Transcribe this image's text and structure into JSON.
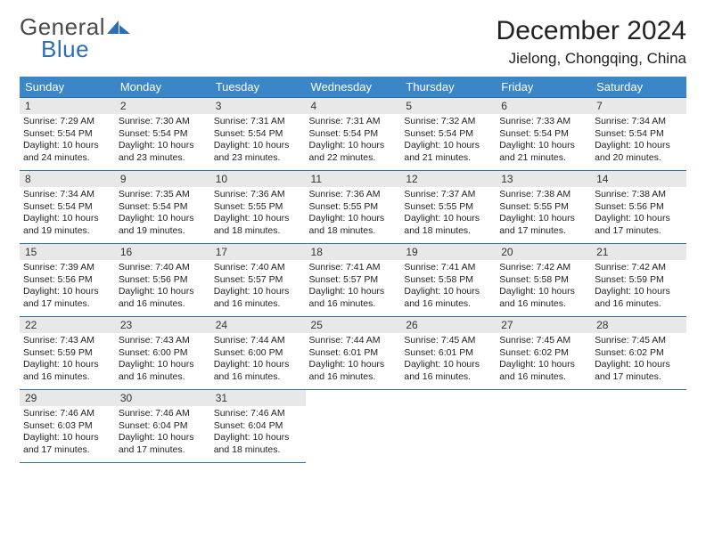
{
  "logo": {
    "word1": "General",
    "word2": "Blue"
  },
  "title": "December 2024",
  "location": "Jielong, Chongqing, China",
  "colors": {
    "header_bg": "#3b86c6",
    "header_text": "#ffffff",
    "border": "#2d6fb5",
    "daynum_bg": "#e8e8e8",
    "logo_blue": "#2d6fb5",
    "logo_gray": "#4a4a4a",
    "text": "#222222",
    "page_bg": "#ffffff"
  },
  "weekdays": [
    "Sunday",
    "Monday",
    "Tuesday",
    "Wednesday",
    "Thursday",
    "Friday",
    "Saturday"
  ],
  "weeks": [
    [
      {
        "n": "1",
        "sr": "7:29 AM",
        "ss": "5:54 PM",
        "dl": "10 hours and 24 minutes."
      },
      {
        "n": "2",
        "sr": "7:30 AM",
        "ss": "5:54 PM",
        "dl": "10 hours and 23 minutes."
      },
      {
        "n": "3",
        "sr": "7:31 AM",
        "ss": "5:54 PM",
        "dl": "10 hours and 23 minutes."
      },
      {
        "n": "4",
        "sr": "7:31 AM",
        "ss": "5:54 PM",
        "dl": "10 hours and 22 minutes."
      },
      {
        "n": "5",
        "sr": "7:32 AM",
        "ss": "5:54 PM",
        "dl": "10 hours and 21 minutes."
      },
      {
        "n": "6",
        "sr": "7:33 AM",
        "ss": "5:54 PM",
        "dl": "10 hours and 21 minutes."
      },
      {
        "n": "7",
        "sr": "7:34 AM",
        "ss": "5:54 PM",
        "dl": "10 hours and 20 minutes."
      }
    ],
    [
      {
        "n": "8",
        "sr": "7:34 AM",
        "ss": "5:54 PM",
        "dl": "10 hours and 19 minutes."
      },
      {
        "n": "9",
        "sr": "7:35 AM",
        "ss": "5:54 PM",
        "dl": "10 hours and 19 minutes."
      },
      {
        "n": "10",
        "sr": "7:36 AM",
        "ss": "5:55 PM",
        "dl": "10 hours and 18 minutes."
      },
      {
        "n": "11",
        "sr": "7:36 AM",
        "ss": "5:55 PM",
        "dl": "10 hours and 18 minutes."
      },
      {
        "n": "12",
        "sr": "7:37 AM",
        "ss": "5:55 PM",
        "dl": "10 hours and 18 minutes."
      },
      {
        "n": "13",
        "sr": "7:38 AM",
        "ss": "5:55 PM",
        "dl": "10 hours and 17 minutes."
      },
      {
        "n": "14",
        "sr": "7:38 AM",
        "ss": "5:56 PM",
        "dl": "10 hours and 17 minutes."
      }
    ],
    [
      {
        "n": "15",
        "sr": "7:39 AM",
        "ss": "5:56 PM",
        "dl": "10 hours and 17 minutes."
      },
      {
        "n": "16",
        "sr": "7:40 AM",
        "ss": "5:56 PM",
        "dl": "10 hours and 16 minutes."
      },
      {
        "n": "17",
        "sr": "7:40 AM",
        "ss": "5:57 PM",
        "dl": "10 hours and 16 minutes."
      },
      {
        "n": "18",
        "sr": "7:41 AM",
        "ss": "5:57 PM",
        "dl": "10 hours and 16 minutes."
      },
      {
        "n": "19",
        "sr": "7:41 AM",
        "ss": "5:58 PM",
        "dl": "10 hours and 16 minutes."
      },
      {
        "n": "20",
        "sr": "7:42 AM",
        "ss": "5:58 PM",
        "dl": "10 hours and 16 minutes."
      },
      {
        "n": "21",
        "sr": "7:42 AM",
        "ss": "5:59 PM",
        "dl": "10 hours and 16 minutes."
      }
    ],
    [
      {
        "n": "22",
        "sr": "7:43 AM",
        "ss": "5:59 PM",
        "dl": "10 hours and 16 minutes."
      },
      {
        "n": "23",
        "sr": "7:43 AM",
        "ss": "6:00 PM",
        "dl": "10 hours and 16 minutes."
      },
      {
        "n": "24",
        "sr": "7:44 AM",
        "ss": "6:00 PM",
        "dl": "10 hours and 16 minutes."
      },
      {
        "n": "25",
        "sr": "7:44 AM",
        "ss": "6:01 PM",
        "dl": "10 hours and 16 minutes."
      },
      {
        "n": "26",
        "sr": "7:45 AM",
        "ss": "6:01 PM",
        "dl": "10 hours and 16 minutes."
      },
      {
        "n": "27",
        "sr": "7:45 AM",
        "ss": "6:02 PM",
        "dl": "10 hours and 16 minutes."
      },
      {
        "n": "28",
        "sr": "7:45 AM",
        "ss": "6:02 PM",
        "dl": "10 hours and 17 minutes."
      }
    ],
    [
      {
        "n": "29",
        "sr": "7:46 AM",
        "ss": "6:03 PM",
        "dl": "10 hours and 17 minutes."
      },
      {
        "n": "30",
        "sr": "7:46 AM",
        "ss": "6:04 PM",
        "dl": "10 hours and 17 minutes."
      },
      {
        "n": "31",
        "sr": "7:46 AM",
        "ss": "6:04 PM",
        "dl": "10 hours and 18 minutes."
      },
      null,
      null,
      null,
      null
    ]
  ],
  "labels": {
    "sunrise": "Sunrise:",
    "sunset": "Sunset:",
    "daylight": "Daylight:"
  }
}
